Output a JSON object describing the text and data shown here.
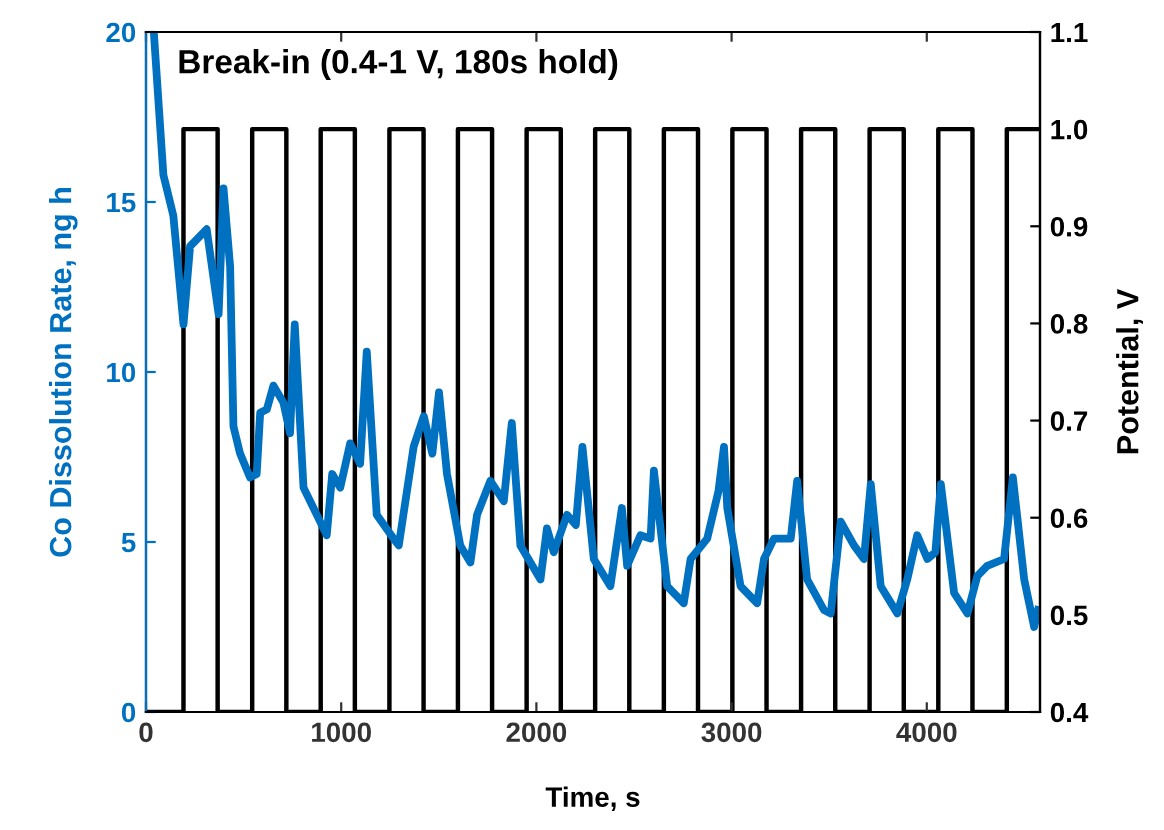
{
  "chart_data": {
    "type": "line",
    "xlabel": "Time, s",
    "ylabel": "Co Dissolution Rate, ng h",
    "y2label": "Potential, V",
    "annotations": [
      "Break-in (0.4-1 V, 180s hold)"
    ],
    "xlim": [
      0,
      4580
    ],
    "xticks": [
      0,
      1000,
      2000,
      3000,
      4000
    ],
    "ylim": [
      0,
      20
    ],
    "yticks": [
      0,
      5,
      10,
      15,
      20
    ],
    "y2lim": [
      0.4,
      1.1
    ],
    "y2ticks": [
      {
        "value": 0.4,
        "label": "0.4"
      },
      {
        "value": 0.5,
        "label": "0.5"
      },
      {
        "value": 0.6,
        "label": "0.6"
      },
      {
        "value": 0.7,
        "label": "0.7"
      },
      {
        "value": 0.8,
        "label": "0.8"
      },
      {
        "value": 0.9,
        "label": "0.9"
      },
      {
        "value": 1.0,
        "label": "1.0"
      },
      {
        "value": 1.1,
        "label": "1.1"
      }
    ],
    "grid": false,
    "legend": false,
    "series": [
      {
        "color": "#0070c0",
        "x": [
          40,
          89,
          140,
          192,
          226,
          311,
          328,
          372,
          397,
          431,
          448,
          482,
          533,
          567,
          585,
          619,
          653,
          704,
          738,
          762,
          807,
          892,
          926,
          954,
          995,
          1046,
          1097,
          1131,
          1182,
          1268,
          1295,
          1371,
          1423,
          1467,
          1501,
          1542,
          1610,
          1662,
          1696,
          1764,
          1833,
          1874,
          1918,
          2021,
          2054,
          2089,
          2157,
          2202,
          2236,
          2294,
          2379,
          2438,
          2465,
          2533,
          2585,
          2602,
          2670,
          2755,
          2790,
          2875,
          2933,
          2961,
          2978,
          3046,
          3131,
          3166,
          3217,
          3303,
          3336,
          3387,
          3473,
          3508,
          3559,
          3627,
          3678,
          3713,
          3764,
          3849,
          3900,
          3951,
          4003,
          4044,
          4072,
          4140,
          4208,
          4259,
          4310,
          4396,
          4441,
          4499,
          4550,
          4570
        ],
        "values": [
          20,
          15.8,
          14.6,
          11.4,
          13.7,
          14.2,
          13.5,
          11.7,
          15.4,
          13.1,
          8.4,
          7.6,
          6.9,
          7.0,
          8.8,
          8.9,
          9.6,
          9.1,
          8.2,
          11.4,
          6.6,
          5.6,
          5.2,
          7.0,
          6.6,
          7.9,
          7.3,
          10.6,
          5.8,
          5.1,
          4.9,
          7.8,
          8.7,
          7.6,
          9.4,
          7.0,
          4.9,
          4.4,
          5.8,
          6.8,
          6.2,
          8.5,
          4.9,
          3.9,
          5.4,
          4.7,
          5.8,
          5.5,
          7.8,
          4.5,
          3.7,
          6.0,
          4.3,
          5.2,
          5.1,
          7.1,
          3.7,
          3.2,
          4.5,
          5.1,
          6.5,
          7.8,
          6.0,
          3.7,
          3.2,
          4.5,
          5.1,
          5.1,
          6.8,
          3.9,
          3.0,
          2.9,
          5.6,
          4.9,
          4.5,
          6.7,
          3.7,
          2.9,
          3.9,
          5.2,
          4.5,
          4.7,
          6.7,
          3.5,
          2.9,
          4.0,
          4.3,
          4.5,
          6.9,
          3.9,
          2.5,
          3.0
        ]
      },
      {
        "color": "#000000",
        "axis": "y2",
        "x": [
          0,
          192,
          192,
          367,
          367,
          544,
          544,
          719,
          719,
          895,
          895,
          1070,
          1070,
          1247,
          1247,
          1422,
          1422,
          1598,
          1598,
          1773,
          1773,
          1950,
          1950,
          2125,
          2125,
          2301,
          2301,
          2476,
          2476,
          2653,
          2653,
          2828,
          2828,
          3004,
          3004,
          3179,
          3179,
          3356,
          3356,
          3531,
          3531,
          3707,
          3707,
          3882,
          3882,
          4059,
          4059,
          4234,
          4234,
          4410,
          4410,
          4570
        ],
        "values": [
          0.4,
          0.4,
          1.0,
          1.0,
          0.4,
          0.4,
          1.0,
          1.0,
          0.4,
          0.4,
          1.0,
          1.0,
          0.4,
          0.4,
          1.0,
          1.0,
          0.4,
          0.4,
          1.0,
          1.0,
          0.4,
          0.4,
          1.0,
          1.0,
          0.4,
          0.4,
          1.0,
          1.0,
          0.4,
          0.4,
          1.0,
          1.0,
          0.4,
          0.4,
          1.0,
          1.0,
          0.4,
          0.4,
          1.0,
          1.0,
          0.4,
          0.4,
          1.0,
          1.0,
          0.4,
          0.4,
          1.0,
          1.0,
          0.4,
          0.4,
          1.0,
          1.0
        ]
      }
    ]
  }
}
